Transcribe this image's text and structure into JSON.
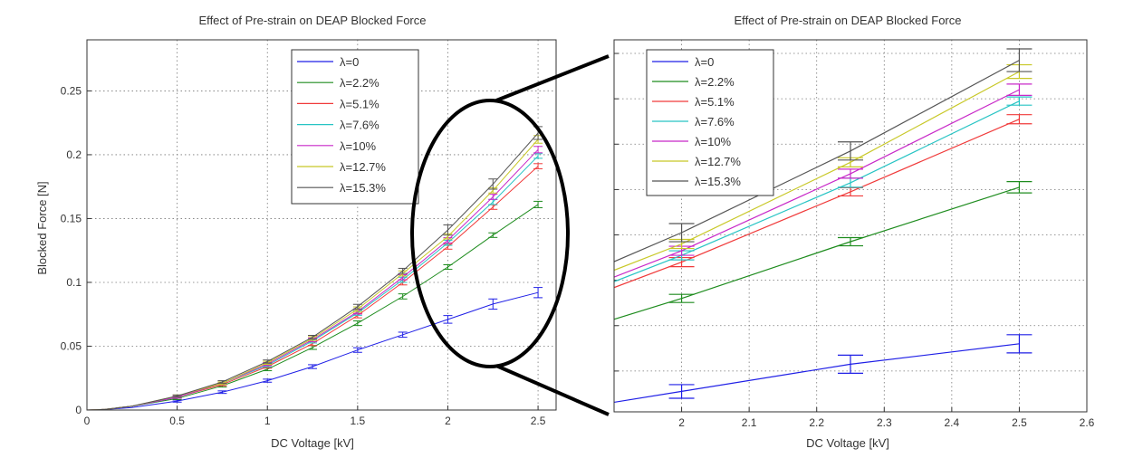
{
  "series_meta": [
    {
      "name": "λ=0",
      "color": "#1f1fe6"
    },
    {
      "name": "λ=2.2%",
      "color": "#1e8c1e"
    },
    {
      "name": "λ=5.1%",
      "color": "#f03a3a"
    },
    {
      "name": "λ=7.6%",
      "color": "#27c4c4"
    },
    {
      "name": "λ=10%",
      "color": "#c828c8"
    },
    {
      "name": "λ=12.7%",
      "color": "#c8c828"
    },
    {
      "name": "λ=15.3%",
      "color": "#555555"
    }
  ],
  "zoom_icon": "ellipse-magnifier",
  "chart_data": [
    {
      "type": "line",
      "title": "Effect of Pre-strain on DEAP Blocked Force",
      "xlabel": "DC Voltage [kV]",
      "ylabel": "Blocked Force [N]",
      "xlim": [
        0,
        2.6
      ],
      "ylim": [
        0,
        0.29
      ],
      "x_ticks": [
        "0",
        "0.5",
        "1",
        "1.5",
        "2",
        "2.5"
      ],
      "y_ticks": [
        "0",
        "0.05",
        "0.1",
        "0.15",
        "0.2",
        "0.25"
      ],
      "grid": true,
      "legend_position": "top-right",
      "x": [
        0,
        0.05,
        0.1,
        0.25,
        0.5,
        0.75,
        1.0,
        1.25,
        1.5,
        1.75,
        2.0,
        2.25,
        2.5
      ],
      "series": [
        {
          "name": "λ=0",
          "values": [
            0,
            0.0001,
            0.0004,
            0.002,
            0.007,
            0.014,
            0.023,
            0.034,
            0.047,
            0.059,
            0.071,
            0.083,
            0.092
          ],
          "errors": [
            0,
            0,
            0,
            0,
            0.0008,
            0.001,
            0.0012,
            0.0015,
            0.0018,
            0.002,
            0.003,
            0.004,
            0.004
          ]
        },
        {
          "name": "λ=2.2%",
          "values": [
            0,
            0.0002,
            0.0005,
            0.003,
            0.009,
            0.019,
            0.032,
            0.049,
            0.068,
            0.089,
            0.112,
            0.137,
            0.161
          ],
          "errors": [
            0,
            0,
            0,
            0,
            0.0008,
            0.001,
            0.0012,
            0.0015,
            0.0018,
            0.002,
            0.0018,
            0.0018,
            0.0025
          ]
        },
        {
          "name": "λ=5.1%",
          "values": [
            0,
            0.0002,
            0.0006,
            0.003,
            0.01,
            0.02,
            0.034,
            0.052,
            0.074,
            0.1,
            0.128,
            0.159,
            0.191
          ],
          "errors": [
            0,
            0,
            0,
            0,
            0.0008,
            0.001,
            0.0012,
            0.0015,
            0.0018,
            0.002,
            0.002,
            0.0018,
            0.002
          ]
        },
        {
          "name": "λ=7.6%",
          "values": [
            0,
            0.0002,
            0.0006,
            0.003,
            0.01,
            0.021,
            0.035,
            0.054,
            0.076,
            0.102,
            0.131,
            0.163,
            0.199
          ],
          "errors": [
            0,
            0,
            0,
            0,
            0.0008,
            0.001,
            0.0012,
            0.0015,
            0.0018,
            0.002,
            0.002,
            0.002,
            0.0018
          ]
        },
        {
          "name": "λ=10%",
          "values": [
            0,
            0.0002,
            0.0006,
            0.003,
            0.01,
            0.021,
            0.036,
            0.055,
            0.077,
            0.104,
            0.133,
            0.167,
            0.204
          ],
          "errors": [
            0,
            0,
            0,
            0,
            0.0008,
            0.001,
            0.0012,
            0.0015,
            0.0018,
            0.002,
            0.002,
            0.002,
            0.0025
          ]
        },
        {
          "name": "λ=12.7%",
          "values": [
            0,
            0.0002,
            0.0006,
            0.003,
            0.011,
            0.021,
            0.037,
            0.056,
            0.079,
            0.107,
            0.136,
            0.172,
            0.212
          ],
          "errors": [
            0,
            0,
            0,
            0,
            0.0008,
            0.001,
            0.0012,
            0.0015,
            0.0018,
            0.002,
            0.002,
            0.002,
            0.003
          ]
        },
        {
          "name": "λ=15.3%",
          "values": [
            0,
            0.0002,
            0.0006,
            0.003,
            0.011,
            0.022,
            0.038,
            0.057,
            0.081,
            0.109,
            0.141,
            0.177,
            0.217
          ],
          "errors": [
            0,
            0,
            0,
            0,
            0.0008,
            0.001,
            0.0012,
            0.0015,
            0.0018,
            0.002,
            0.004,
            0.004,
            0.005
          ]
        }
      ]
    },
    {
      "type": "line",
      "title": "Effect of Pre-strain on DEAP Blocked Force",
      "xlabel": "DC Voltage [kV]",
      "ylabel": "",
      "xlim": [
        1.9,
        2.6
      ],
      "ylim": [
        0.062,
        0.226
      ],
      "x_ticks": [
        "2",
        "2.1",
        "2.2",
        "2.3",
        "2.4",
        "2.5",
        "2.6"
      ],
      "y_ticks": [],
      "grid": true,
      "legend_position": "top-left",
      "x": [
        1.75,
        2.0,
        2.25,
        2.5
      ],
      "series": [
        {
          "name": "λ=0",
          "values": [
            0.059,
            0.071,
            0.083,
            0.092
          ],
          "errors": [
            0.002,
            0.003,
            0.004,
            0.004
          ]
        },
        {
          "name": "λ=2.2%",
          "values": [
            0.089,
            0.112,
            0.137,
            0.161
          ],
          "errors": [
            0.002,
            0.0018,
            0.0018,
            0.0025
          ]
        },
        {
          "name": "λ=5.1%",
          "values": [
            0.1,
            0.128,
            0.159,
            0.191
          ],
          "errors": [
            0.002,
            0.002,
            0.0018,
            0.002
          ]
        },
        {
          "name": "λ=7.6%",
          "values": [
            0.102,
            0.131,
            0.163,
            0.199
          ],
          "errors": [
            0.002,
            0.002,
            0.002,
            0.0018
          ]
        },
        {
          "name": "λ=10%",
          "values": [
            0.104,
            0.133,
            0.167,
            0.204
          ],
          "errors": [
            0.002,
            0.002,
            0.002,
            0.0025
          ]
        },
        {
          "name": "λ=12.7%",
          "values": [
            0.107,
            0.136,
            0.172,
            0.212
          ],
          "errors": [
            0.002,
            0.002,
            0.002,
            0.003
          ]
        },
        {
          "name": "λ=15.3%",
          "values": [
            0.109,
            0.141,
            0.177,
            0.217
          ],
          "errors": [
            0.002,
            0.004,
            0.004,
            0.005
          ]
        }
      ]
    }
  ]
}
